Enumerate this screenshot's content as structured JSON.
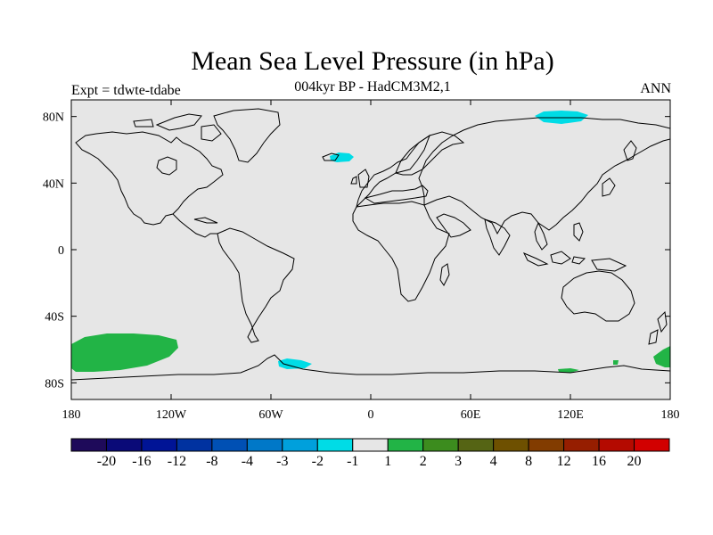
{
  "title": "Mean Sea Level Pressure (in hPa)",
  "subtitle": "004kyr BP - HadCM3M2,1",
  "experiment_label": "Expt = tdwte-tdabe",
  "season": "ANN",
  "map": {
    "projection": "cylindrical-equidistant",
    "lon_range": [
      -180,
      180
    ],
    "lat_range": [
      -90,
      90
    ],
    "background_color": "#e6e6e6",
    "coastline_color": "#000000",
    "x_tick_labels": [
      "180",
      "120W",
      "60W",
      "0",
      "60E",
      "120E",
      "180"
    ],
    "y_tick_labels": [
      "80N",
      "40N",
      "0",
      "40S",
      "80S"
    ]
  },
  "anomaly_regions": [
    {
      "name": "negative-anomaly-arctic",
      "class": "-2 to -1",
      "color": "#00dce6",
      "center_lon": 95,
      "center_lat": 80
    },
    {
      "name": "negative-anomaly-north-atlantic",
      "class": "-2 to -1",
      "color": "#00dce6",
      "center_lon": -25,
      "center_lat": 56
    },
    {
      "name": "negative-anomaly-weddell-sea",
      "class": "-2 to -1",
      "color": "#00dce6",
      "center_lon": -50,
      "center_lat": -68
    },
    {
      "name": "positive-anomaly-south-pacific",
      "class": "1 to 2",
      "color": "#22b446",
      "center_lon": -150,
      "center_lat": -60
    },
    {
      "name": "positive-anomaly-south-pacific-east",
      "class": "1 to 2",
      "color": "#22b446",
      "center_lon": 172,
      "center_lat": -63
    },
    {
      "name": "positive-anomaly-east-antarctic",
      "class": "1 to 2",
      "color": "#22b446",
      "center_lon": 115,
      "center_lat": -71
    }
  ],
  "colorbar": {
    "colors": [
      "#1e0a5a",
      "#0a0a78",
      "#001496",
      "#0032a0",
      "#0050b4",
      "#0078c8",
      "#00a0dc",
      "#00dce6",
      "#e6e6e6",
      "#22b446",
      "#3c8c1e",
      "#556414",
      "#6e5000",
      "#823c00",
      "#961e00",
      "#b40a00",
      "#d20000"
    ],
    "labels": [
      "-20",
      "-16",
      "-12",
      "-8",
      "-4",
      "-3",
      "-2",
      "-1",
      "1",
      "2",
      "3",
      "4",
      "8",
      "12",
      "16",
      "20"
    ]
  }
}
